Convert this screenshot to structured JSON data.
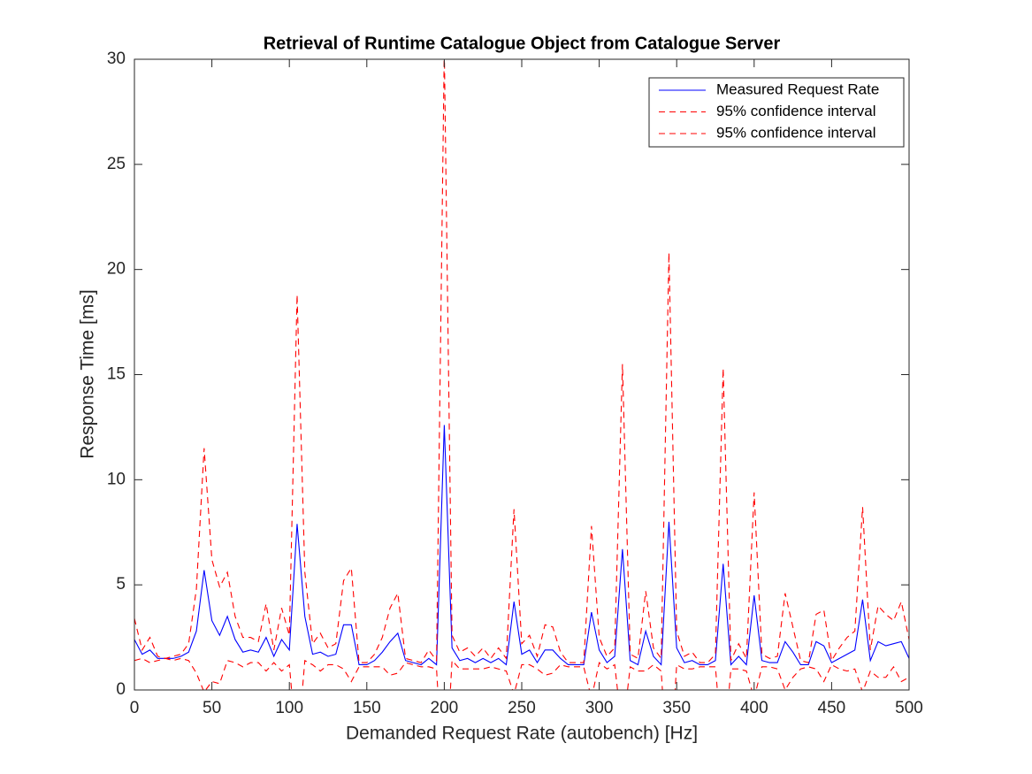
{
  "chart_data": {
    "type": "line",
    "title": "Retrieval of Runtime Catalogue Object from Catalogue Server",
    "x_label": "Demanded Request Rate (autobench) [Hz]",
    "y_label": "Response Time [ms]",
    "x": [
      0,
      5,
      10,
      15,
      20,
      25,
      30,
      35,
      40,
      45,
      50,
      55,
      60,
      65,
      70,
      75,
      80,
      85,
      90,
      95,
      100,
      105,
      110,
      115,
      120,
      125,
      130,
      135,
      140,
      145,
      150,
      155,
      160,
      165,
      170,
      175,
      180,
      185,
      190,
      195,
      200,
      205,
      210,
      215,
      220,
      225,
      230,
      235,
      240,
      245,
      250,
      255,
      260,
      265,
      270,
      275,
      280,
      285,
      290,
      295,
      300,
      305,
      310,
      315,
      320,
      325,
      330,
      335,
      340,
      345,
      350,
      355,
      360,
      365,
      370,
      375,
      380,
      385,
      390,
      395,
      400,
      405,
      410,
      415,
      420,
      425,
      430,
      435,
      440,
      445,
      450,
      455,
      460,
      465,
      470,
      475,
      480,
      485,
      490,
      495,
      500
    ],
    "series": [
      {
        "name": "Measured Request Rate",
        "color": "#0000ff",
        "dash": "solid",
        "values": [
          2.4,
          1.7,
          1.9,
          1.5,
          1.5,
          1.5,
          1.6,
          1.8,
          2.8,
          5.7,
          3.3,
          2.6,
          3.5,
          2.4,
          1.8,
          1.9,
          1.8,
          2.5,
          1.6,
          2.4,
          1.9,
          7.9,
          3.5,
          1.7,
          1.8,
          1.6,
          1.7,
          3.1,
          3.1,
          1.2,
          1.2,
          1.4,
          1.8,
          2.3,
          2.7,
          1.4,
          1.3,
          1.2,
          1.5,
          1.2,
          12.6,
          2.0,
          1.4,
          1.5,
          1.3,
          1.5,
          1.3,
          1.5,
          1.2,
          4.2,
          1.7,
          1.9,
          1.3,
          1.9,
          1.9,
          1.5,
          1.2,
          1.2,
          1.2,
          3.7,
          1.9,
          1.3,
          1.6,
          6.7,
          1.4,
          1.2,
          2.8,
          1.6,
          1.2,
          8.0,
          2.0,
          1.3,
          1.4,
          1.2,
          1.2,
          1.4,
          6.0,
          1.2,
          1.6,
          1.2,
          4.5,
          1.4,
          1.3,
          1.3,
          2.3,
          1.8,
          1.2,
          1.2,
          2.3,
          2.1,
          1.3,
          1.5,
          1.7,
          1.9,
          4.3,
          1.4,
          2.3,
          2.1,
          2.2,
          2.3,
          1.5
        ]
      },
      {
        "name": "95% confidence interval",
        "color": "#ff0000",
        "dash": "dashed",
        "values": [
          3.4,
          1.9,
          2.5,
          1.6,
          1.5,
          1.6,
          1.7,
          2.2,
          4.8,
          11.5,
          6.2,
          4.9,
          5.6,
          3.5,
          2.5,
          2.5,
          2.3,
          4.1,
          1.9,
          3.9,
          2.6,
          18.8,
          5.6,
          2.2,
          2.7,
          2.0,
          2.2,
          5.2,
          5.8,
          1.3,
          1.3,
          1.7,
          2.5,
          3.9,
          4.6,
          1.5,
          1.4,
          1.3,
          1.9,
          1.4,
          30.5,
          2.6,
          1.8,
          2.0,
          1.6,
          2.0,
          1.5,
          2.0,
          1.5,
          8.6,
          2.2,
          2.6,
          1.6,
          3.1,
          3.0,
          1.8,
          1.3,
          1.3,
          1.3,
          7.8,
          2.5,
          1.6,
          2.0,
          15.5,
          1.7,
          1.5,
          4.7,
          2.0,
          1.5,
          20.8,
          2.8,
          1.6,
          1.8,
          1.3,
          1.3,
          1.7,
          15.3,
          1.4,
          2.2,
          1.5,
          9.4,
          1.7,
          1.5,
          1.6,
          4.6,
          3.0,
          1.4,
          1.3,
          3.6,
          3.8,
          1.4,
          2.0,
          2.5,
          2.8,
          8.7,
          1.9,
          4.0,
          3.6,
          3.3,
          4.2,
          2.4
        ]
      },
      {
        "name": "95% confidence interval",
        "color": "#ff0000",
        "dash": "dashed",
        "values": [
          1.4,
          1.5,
          1.3,
          1.4,
          1.5,
          1.4,
          1.5,
          1.4,
          0.8,
          -0.1,
          0.4,
          0.3,
          1.4,
          1.3,
          1.1,
          1.3,
          1.3,
          0.9,
          1.3,
          0.9,
          1.2,
          -3.0,
          1.4,
          1.2,
          0.9,
          1.2,
          1.2,
          1.0,
          0.4,
          1.1,
          1.1,
          1.1,
          1.1,
          0.7,
          0.8,
          1.3,
          1.2,
          1.1,
          1.1,
          1.0,
          -5.3,
          1.4,
          1.0,
          1.0,
          1.0,
          1.0,
          1.1,
          1.0,
          0.9,
          -0.2,
          1.2,
          1.2,
          1.0,
          0.7,
          0.8,
          1.2,
          1.1,
          1.1,
          1.1,
          -0.4,
          1.3,
          1.0,
          1.2,
          -2.1,
          1.1,
          0.9,
          0.9,
          1.2,
          0.9,
          -4.8,
          1.2,
          1.0,
          1.0,
          1.1,
          1.1,
          1.1,
          -3.3,
          1.0,
          1.0,
          0.9,
          -0.4,
          1.1,
          1.1,
          1.0,
          0.0,
          0.6,
          1.0,
          1.1,
          1.0,
          0.4,
          1.2,
          1.0,
          0.9,
          1.0,
          -0.1,
          0.9,
          0.6,
          0.6,
          1.1,
          0.4,
          0.6
        ]
      }
    ],
    "xlim": [
      0,
      500
    ],
    "xticks": [
      0,
      50,
      100,
      150,
      200,
      250,
      300,
      350,
      400,
      450,
      500
    ],
    "ylim": [
      0,
      30
    ],
    "yticks": [
      0,
      5,
      10,
      15,
      20,
      25,
      30
    ],
    "legend": "top-right",
    "grid": false
  }
}
